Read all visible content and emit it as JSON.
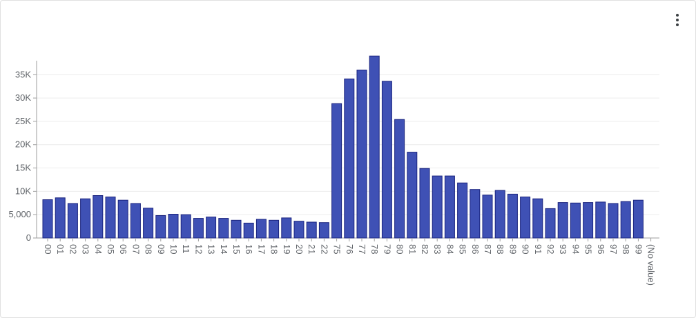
{
  "menu": {
    "icon": "more-vert-icon"
  },
  "chart_data": {
    "type": "bar",
    "title": "",
    "xlabel": "",
    "ylabel": "",
    "ylim": [
      0,
      38000
    ],
    "grid": true,
    "bar_color": "#3f51b5",
    "bar_edge_color": "#1a237e",
    "y_ticks": [
      {
        "value": 0,
        "label": "0"
      },
      {
        "value": 5000,
        "label": "5,000"
      },
      {
        "value": 10000,
        "label": "10K"
      },
      {
        "value": 15000,
        "label": "15K"
      },
      {
        "value": 20000,
        "label": "20K"
      },
      {
        "value": 25000,
        "label": "25K"
      },
      {
        "value": 30000,
        "label": "30K"
      },
      {
        "value": 35000,
        "label": "35K"
      }
    ],
    "categories": [
      "00",
      "01",
      "02",
      "03",
      "04",
      "05",
      "06",
      "07",
      "08",
      "09",
      "10",
      "11",
      "12",
      "13",
      "14",
      "15",
      "16",
      "17",
      "18",
      "19",
      "20",
      "21",
      "22",
      "75",
      "76",
      "77",
      "78",
      "79",
      "80",
      "81",
      "82",
      "83",
      "84",
      "85",
      "86",
      "87",
      "88",
      "89",
      "90",
      "91",
      "92",
      "93",
      "94",
      "95",
      "96",
      "97",
      "98",
      "99",
      "(No value)"
    ],
    "values": [
      8200,
      8600,
      7400,
      8400,
      9100,
      8800,
      8100,
      7400,
      6400,
      4800,
      5100,
      5000,
      4200,
      4500,
      4200,
      3800,
      3200,
      4000,
      3800,
      4300,
      3600,
      3400,
      3300,
      28800,
      34100,
      36000,
      39000,
      33600,
      25400,
      18400,
      14900,
      13300,
      13300,
      11800,
      10400,
      9200,
      10200,
      9400,
      8800,
      8400,
      6300,
      7600,
      7500,
      7600,
      7700,
      7400,
      7800,
      8100,
      0
    ]
  }
}
